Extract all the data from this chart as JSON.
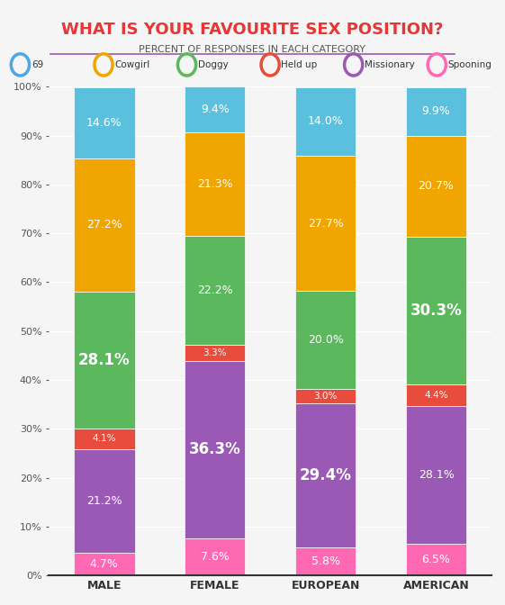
{
  "title": "WHAT IS YOUR FAVOURITE SEX POSITION?",
  "subtitle": "PERCENT OF RESPONSES IN EACH CATEGORY",
  "categories": [
    "MALE",
    "FEMALE",
    "EUROPEAN",
    "AMERICAN"
  ],
  "segments": {
    "69": [
      4.7,
      7.6,
      5.8,
      6.5
    ],
    "Missionary": [
      21.2,
      36.3,
      29.4,
      28.1
    ],
    "Held up": [
      4.1,
      3.3,
      3.0,
      4.4
    ],
    "Doggy": [
      28.1,
      22.2,
      20.0,
      30.3
    ],
    "Cowgirl": [
      27.2,
      21.3,
      27.7,
      20.7
    ],
    "Spooning": [
      14.6,
      9.4,
      14.0,
      9.9
    ]
  },
  "colors": {
    "69": "#ff69b4",
    "Missionary": "#9b59b6",
    "Held up": "#e74c3c",
    "Doggy": "#5cb85c",
    "Cowgirl": "#f0a500",
    "Spooning": "#5bc0de"
  },
  "legend_colors": {
    "69": "#4da6e8",
    "Cowgirl": "#f0a500",
    "Doggy": "#5cb85c",
    "Held up": "#e74c3c",
    "Missionary": "#9b59b6",
    "Spooning": "#ff69b4"
  },
  "title_color": "#e83535",
  "subtitle_color": "#555555",
  "bg_color": "#f5f5f5",
  "bar_width": 0.55,
  "ylim": [
    0,
    100
  ]
}
